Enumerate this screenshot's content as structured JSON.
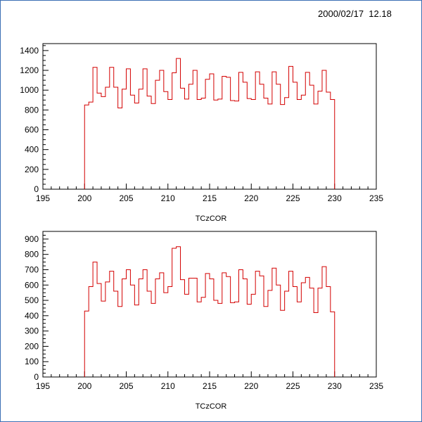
{
  "header": {
    "timestamp": "2000/02/17  12.18"
  },
  "chart_data": [
    {
      "type": "bar",
      "style": "step-histogram",
      "title": "",
      "xlabel": "TCzCOR",
      "ylabel": "",
      "bin_start": 200,
      "bin_width": 0.5,
      "xlim": [
        195,
        235
      ],
      "ylim": [
        0,
        1470
      ],
      "xticks": [
        "195",
        "200",
        "205",
        "210",
        "215",
        "220",
        "225",
        "230",
        "235"
      ],
      "yticks": [
        "0",
        "200",
        "400",
        "600",
        "800",
        "1000",
        "1200",
        "1400"
      ],
      "values": [
        850,
        880,
        1230,
        970,
        935,
        1030,
        1230,
        1030,
        820,
        1010,
        1215,
        950,
        870,
        1010,
        1215,
        940,
        865,
        1100,
        1200,
        985,
        905,
        1175,
        1320,
        1020,
        910,
        1060,
        1200,
        905,
        920,
        1110,
        1165,
        900,
        910,
        1140,
        1130,
        895,
        890,
        1180,
        1080,
        915,
        905,
        1185,
        1060,
        920,
        860,
        1185,
        1060,
        855,
        925,
        1240,
        1080,
        905,
        950,
        1180,
        1050,
        860,
        990,
        1200,
        980,
        905
      ],
      "color": "#d40000"
    },
    {
      "type": "bar",
      "style": "step-histogram",
      "title": "",
      "xlabel": "TCzCOR",
      "ylabel": "",
      "bin_start": 200,
      "bin_width": 0.5,
      "xlim": [
        195,
        235
      ],
      "ylim": [
        0,
        950
      ],
      "xticks": [
        "195",
        "200",
        "205",
        "210",
        "215",
        "220",
        "225",
        "230",
        "235"
      ],
      "yticks": [
        "0",
        "100",
        "200",
        "300",
        "400",
        "500",
        "600",
        "700",
        "800",
        "900"
      ],
      "values": [
        430,
        590,
        750,
        610,
        495,
        620,
        690,
        560,
        460,
        640,
        700,
        600,
        470,
        640,
        700,
        560,
        480,
        640,
        680,
        550,
        590,
        840,
        850,
        635,
        540,
        645,
        645,
        490,
        520,
        675,
        640,
        500,
        480,
        680,
        655,
        485,
        490,
        700,
        640,
        475,
        540,
        690,
        660,
        460,
        565,
        710,
        600,
        435,
        560,
        690,
        590,
        490,
        615,
        650,
        580,
        420,
        580,
        720,
        590,
        425
      ],
      "color": "#d40000"
    }
  ]
}
